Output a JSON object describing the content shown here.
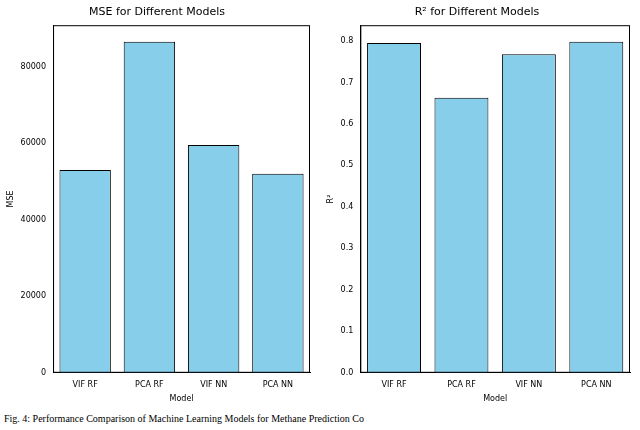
{
  "caption": "Fig. 4: Performance Comparison of Machine Learning Models for Methane Prediction Co",
  "chart_data": [
    {
      "type": "bar",
      "title": "MSE for Different Models",
      "x_label": "Model",
      "y_label": "MSE",
      "categories": [
        "VIF RF",
        "PCA RF",
        "VIF NN",
        "PCA NN"
      ],
      "values": [
        53000,
        86500,
        59500,
        52000
      ],
      "color": "#87ceeb",
      "ylim": [
        0,
        90800
      ],
      "yticks": [
        0,
        20000,
        40000,
        60000,
        80000
      ],
      "grid": false
    },
    {
      "type": "bar",
      "title": "R² for Different Models",
      "x_label": "Model",
      "y_label": "R²",
      "categories": [
        "VIF RF",
        "PCA RF",
        "VIF NN",
        "PCA NN"
      ],
      "values": [
        0.795,
        0.663,
        0.768,
        0.798
      ],
      "color": "#87ceeb",
      "ylim": [
        0,
        0.838
      ],
      "yticks": [
        {
          "value": 0,
          "label": "0.0"
        },
        0.1,
        0.2,
        0.3,
        0.4,
        0.5,
        0.6,
        0.7,
        0.8
      ],
      "grid": false
    }
  ]
}
